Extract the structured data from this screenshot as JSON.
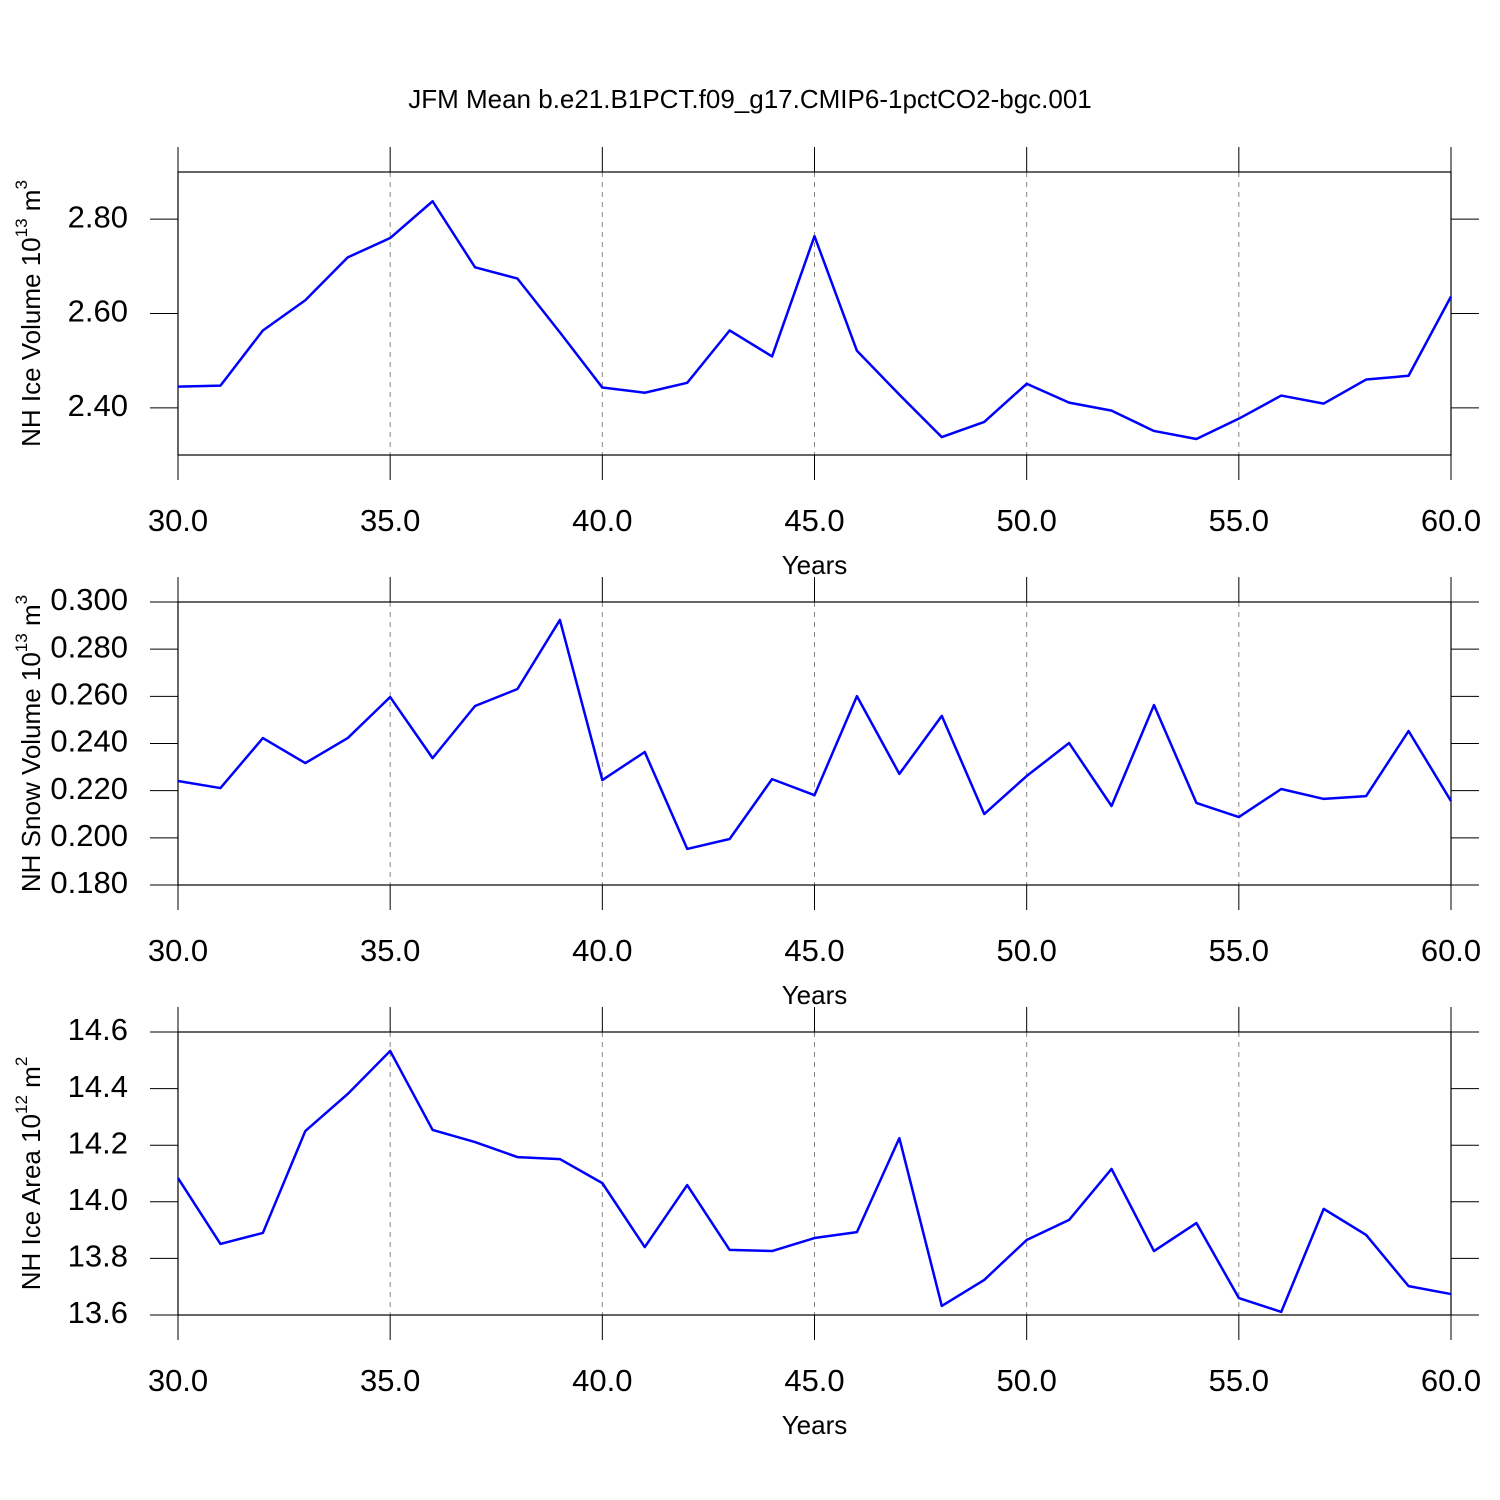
{
  "title": "JFM Mean b.e21.B1PCT.f09_g17.CMIP6-1pctCO2-bgc.001",
  "chart_data": [
    {
      "type": "line",
      "xlabel": "Years",
      "ylabel": {
        "text": "NH Ice Volume 10",
        "exponent": "13",
        "unit": " m",
        "unit_exponent": "3"
      },
      "x": [
        30,
        31,
        32,
        33,
        34,
        35,
        36,
        37,
        38,
        39,
        40,
        41,
        42,
        43,
        44,
        45,
        46,
        47,
        48,
        49,
        50,
        51,
        52,
        53,
        54,
        55,
        56,
        57,
        58,
        59,
        60
      ],
      "series": [
        {
          "color": "#0000ff",
          "values": [
            2.445,
            2.447,
            2.564,
            2.628,
            2.719,
            2.76,
            2.838,
            2.698,
            2.674,
            2.56,
            2.443,
            2.432,
            2.453,
            2.564,
            2.509,
            2.764,
            2.521,
            2.428,
            2.338,
            2.37,
            2.451,
            2.411,
            2.394,
            2.351,
            2.334,
            2.377,
            2.426,
            2.409,
            2.46,
            2.468,
            2.636
          ]
        }
      ],
      "xlim": [
        30,
        60
      ],
      "xticks": [
        {
          "value": 30,
          "label": "30.0"
        },
        {
          "value": 35,
          "label": "35.0"
        },
        {
          "value": 40,
          "label": "40.0"
        },
        {
          "value": 45,
          "label": "45.0"
        },
        {
          "value": 50,
          "label": "50.0"
        },
        {
          "value": 55,
          "label": "55.0"
        },
        {
          "value": 60,
          "label": "60.0"
        }
      ],
      "ylim": [
        2.3,
        2.9
      ],
      "yticks": [
        {
          "value": 2.4,
          "label": "2.40"
        },
        {
          "value": 2.6,
          "label": "2.60"
        },
        {
          "value": 2.8,
          "label": "2.80"
        }
      ],
      "xgrid": true
    },
    {
      "type": "line",
      "xlabel": "Years",
      "ylabel": {
        "text": "NH Snow Volume 10",
        "exponent": "13",
        "unit": " m",
        "unit_exponent": "3"
      },
      "x": [
        30,
        31,
        32,
        33,
        34,
        35,
        36,
        37,
        38,
        39,
        40,
        41,
        42,
        43,
        44,
        45,
        46,
        47,
        48,
        49,
        50,
        51,
        52,
        53,
        54,
        55,
        56,
        57,
        58,
        59,
        60
      ],
      "series": [
        {
          "color": "#0000ff",
          "values": [
            0.2241,
            0.2211,
            0.2423,
            0.2317,
            0.2423,
            0.2597,
            0.2338,
            0.2559,
            0.2631,
            0.2924,
            0.2245,
            0.2364,
            0.1953,
            0.1995,
            0.2249,
            0.2181,
            0.2601,
            0.2271,
            0.2517,
            0.2101,
            0.2262,
            0.2402,
            0.2135,
            0.2563,
            0.2148,
            0.2088,
            0.2207,
            0.2165,
            0.2177,
            0.2453,
            0.2156
          ]
        }
      ],
      "xlim": [
        30,
        60
      ],
      "xticks": [
        {
          "value": 30,
          "label": "30.0"
        },
        {
          "value": 35,
          "label": "35.0"
        },
        {
          "value": 40,
          "label": "40.0"
        },
        {
          "value": 45,
          "label": "45.0"
        },
        {
          "value": 50,
          "label": "50.0"
        },
        {
          "value": 55,
          "label": "55.0"
        },
        {
          "value": 60,
          "label": "60.0"
        }
      ],
      "ylim": [
        0.18,
        0.3
      ],
      "yticks": [
        {
          "value": 0.18,
          "label": "0.180"
        },
        {
          "value": 0.2,
          "label": "0.200"
        },
        {
          "value": 0.22,
          "label": "0.220"
        },
        {
          "value": 0.24,
          "label": "0.240"
        },
        {
          "value": 0.26,
          "label": "0.260"
        },
        {
          "value": 0.28,
          "label": "0.280"
        },
        {
          "value": 0.3,
          "label": "0.300"
        }
      ],
      "xgrid": true
    },
    {
      "type": "line",
      "xlabel": "Years",
      "ylabel": {
        "text": "NH Ice Area 10",
        "exponent": "12",
        "unit": " m",
        "unit_exponent": "2"
      },
      "x": [
        30,
        31,
        32,
        33,
        34,
        35,
        36,
        37,
        38,
        39,
        40,
        41,
        42,
        43,
        44,
        45,
        46,
        47,
        48,
        49,
        50,
        51,
        52,
        53,
        54,
        55,
        56,
        57,
        58,
        59,
        60
      ],
      "series": [
        {
          "color": "#0000ff",
          "values": [
            14.084,
            13.851,
            13.89,
            14.25,
            14.381,
            14.533,
            14.254,
            14.211,
            14.158,
            14.151,
            14.066,
            13.84,
            14.059,
            13.83,
            13.826,
            13.872,
            13.893,
            14.225,
            13.632,
            13.724,
            13.865,
            13.936,
            14.116,
            13.826,
            13.925,
            13.66,
            13.611,
            13.975,
            13.883,
            13.702,
            13.674
          ]
        }
      ],
      "xlim": [
        30,
        60
      ],
      "xticks": [
        {
          "value": 30,
          "label": "30.0"
        },
        {
          "value": 35,
          "label": "35.0"
        },
        {
          "value": 40,
          "label": "40.0"
        },
        {
          "value": 45,
          "label": "45.0"
        },
        {
          "value": 50,
          "label": "50.0"
        },
        {
          "value": 55,
          "label": "55.0"
        },
        {
          "value": 60,
          "label": "60.0"
        }
      ],
      "ylim": [
        13.6,
        14.6
      ],
      "yticks": [
        {
          "value": 13.6,
          "label": "13.6"
        },
        {
          "value": 13.8,
          "label": "13.8"
        },
        {
          "value": 14.0,
          "label": "14.0"
        },
        {
          "value": 14.2,
          "label": "14.2"
        },
        {
          "value": 14.4,
          "label": "14.4"
        },
        {
          "value": 14.6,
          "label": "14.6"
        }
      ],
      "xgrid": true
    }
  ]
}
